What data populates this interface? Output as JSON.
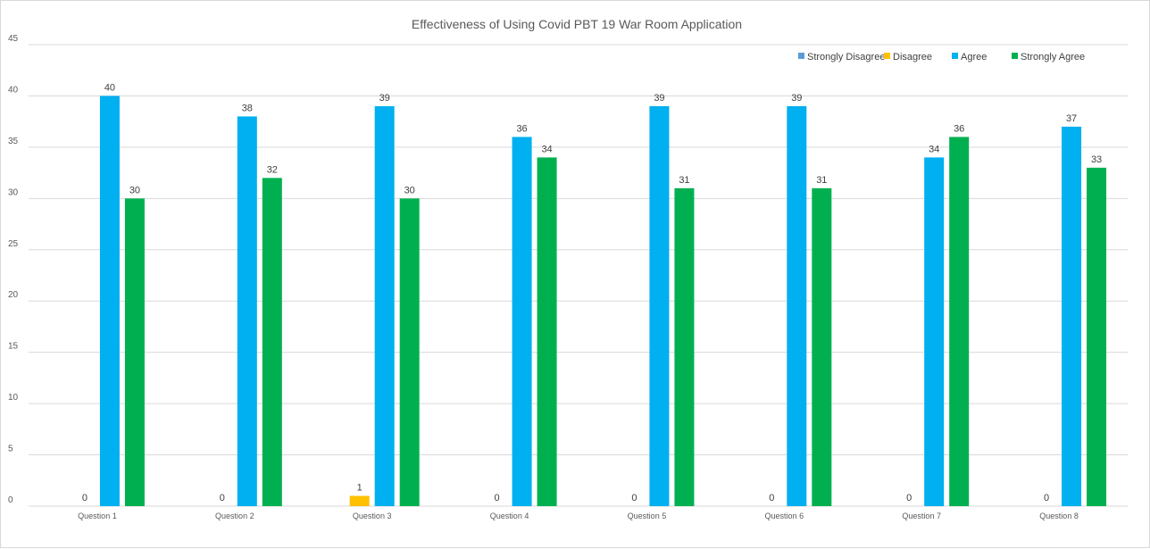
{
  "chart_data": {
    "type": "bar",
    "title": "Effectiveness of Using Covid PBT 19 War Room Application",
    "xlabel": "",
    "ylabel": "",
    "ylim": [
      0,
      45
    ],
    "yticks": [
      0,
      5,
      10,
      15,
      20,
      25,
      30,
      35,
      40,
      45
    ],
    "grid": true,
    "legend_position": "top-right",
    "categories": [
      "Question 1",
      "Question 2",
      "Question 3",
      "Question 4",
      "Question 5",
      "Question 6",
      "Question 7",
      "Question 8"
    ],
    "series": [
      {
        "name": "Strongly Disagree",
        "color": "#5b9bd5",
        "values": [
          0,
          0,
          0,
          0,
          0,
          0,
          0,
          0
        ],
        "show_labels": false
      },
      {
        "name": "Disagree",
        "color": "#ffc000",
        "values": [
          0,
          0,
          1,
          0,
          0,
          0,
          0,
          0
        ],
        "show_labels": true
      },
      {
        "name": "Agree",
        "color": "#00b0f0",
        "values": [
          40,
          38,
          39,
          36,
          39,
          39,
          34,
          37
        ],
        "show_labels": true
      },
      {
        "name": "Strongly Agree",
        "color": "#00b050",
        "values": [
          30,
          32,
          30,
          34,
          31,
          31,
          36,
          33
        ],
        "show_labels": true
      }
    ]
  }
}
